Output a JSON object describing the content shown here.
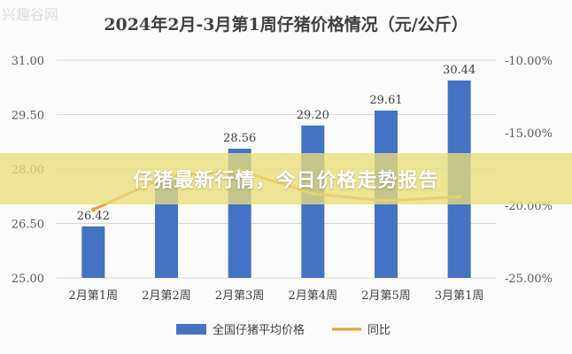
{
  "banner": {
    "text": "仔猪最新行情，今日价格走势报告"
  },
  "chart_data": {
    "type": "bar",
    "title": "2024年2月-3月第1周仔猪价格情况（元/公斤）",
    "categories": [
      "2月第1周",
      "2月第2周",
      "2月第3周",
      "2月第4周",
      "2月第5周",
      "3月第1周"
    ],
    "series": [
      {
        "name": "全国仔猪平均价格",
        "type": "bar",
        "axis": "left",
        "values": [
          26.42,
          27.7,
          28.56,
          29.2,
          29.61,
          30.44
        ],
        "color": "#4472c4"
      },
      {
        "name": "同比",
        "type": "line",
        "axis": "right",
        "values": [
          -20.3,
          -18.0,
          -17.6,
          -19.2,
          -19.7,
          -19.4
        ],
        "color": "#ed9b33"
      }
    ],
    "data_labels": [
      "26.42",
      "",
      "28.56",
      "29.20",
      "29.61",
      "30.44"
    ],
    "y_left": {
      "ylim": [
        25.0,
        31.0
      ],
      "ticks": [
        "25.00",
        "26.50",
        "28.00",
        "29.50",
        "31.00"
      ],
      "tick_values": [
        25.0,
        26.5,
        28.0,
        29.5,
        31.0
      ]
    },
    "y_right": {
      "ylim": [
        -25.0,
        -10.0
      ],
      "ticks": [
        "-25.00%",
        "-20.00%",
        "-15.00%",
        "-10.00%"
      ],
      "tick_values": [
        -25.0,
        -20.0,
        -15.0,
        -10.0
      ]
    },
    "grid": true,
    "legend": "bottom"
  },
  "watermark": {
    "text": "兴趣谷网"
  }
}
